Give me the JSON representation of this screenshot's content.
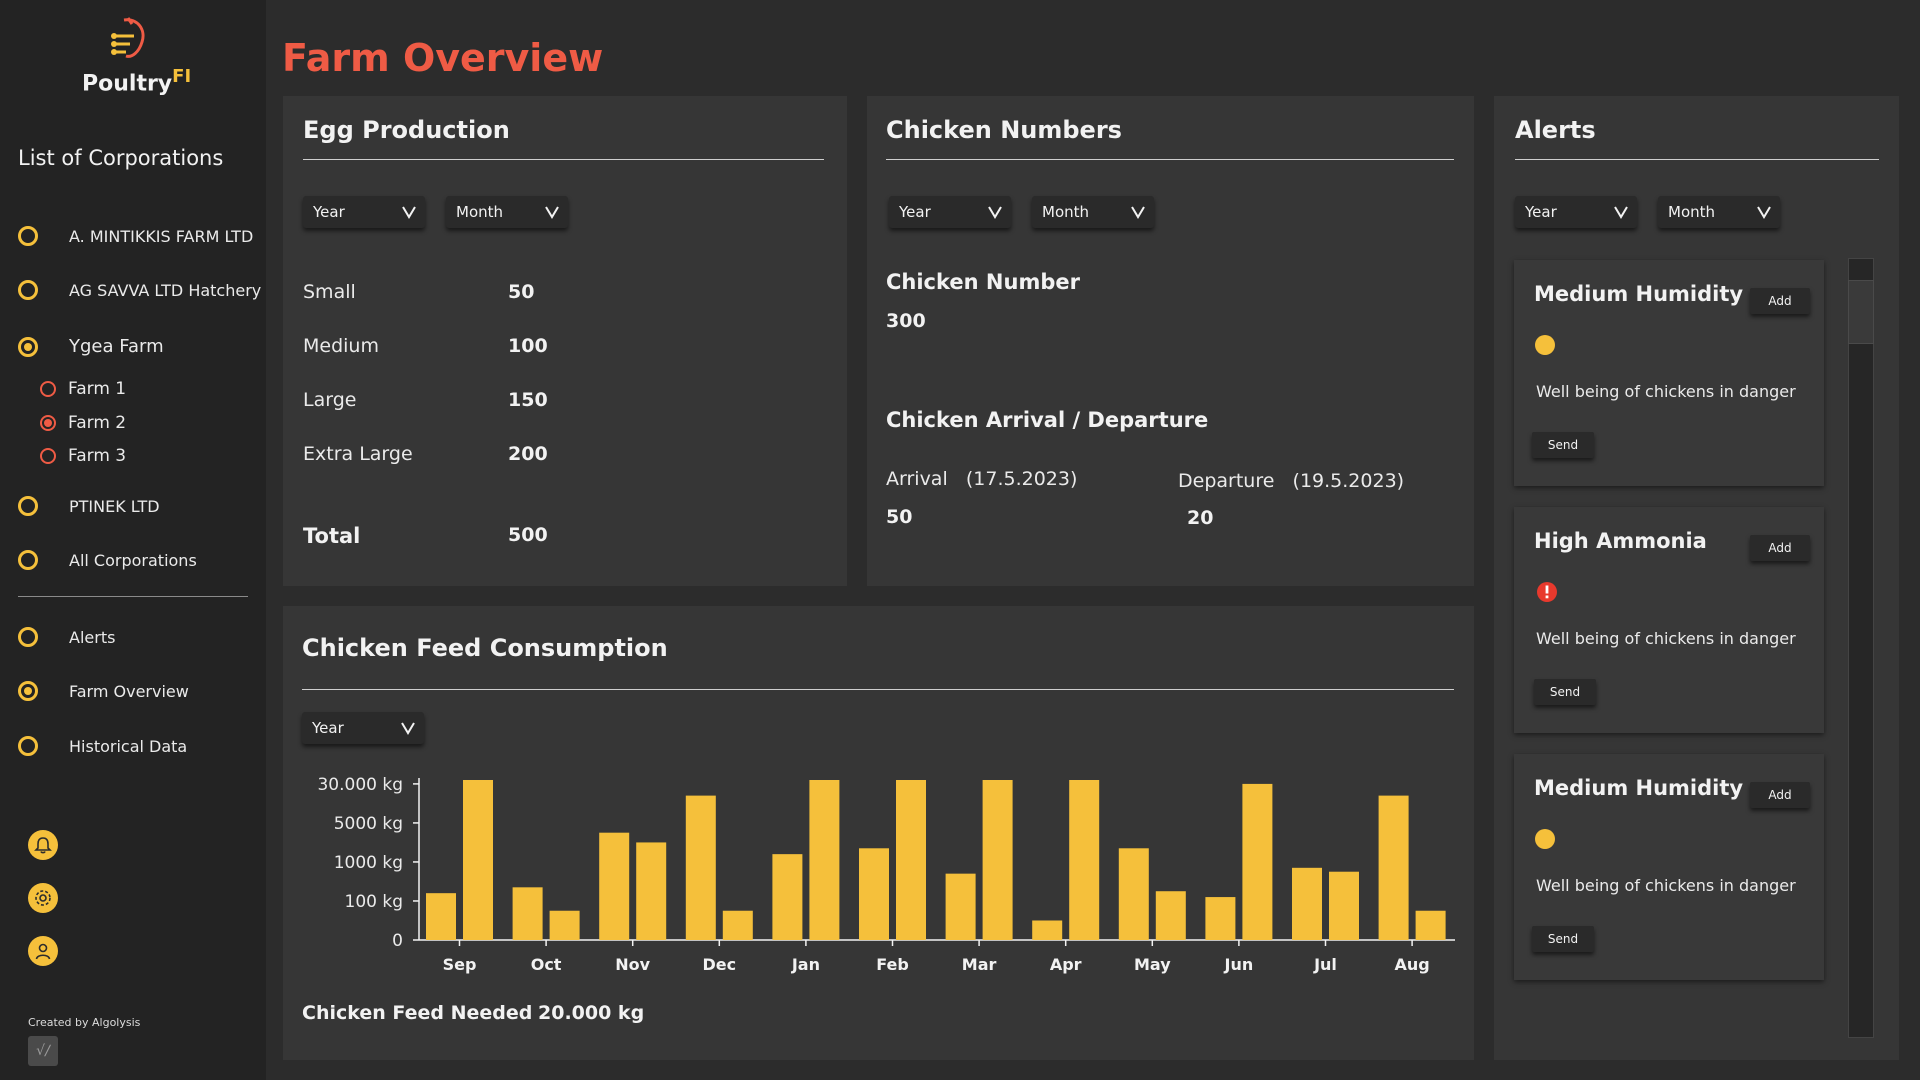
{
  "app": {
    "logo_text": "Poultry",
    "logo_suffix": "FI",
    "page_title": "Farm Overview"
  },
  "sidebar": {
    "title_prefix": "List of",
    "title_rest": " Corporations",
    "corporations": [
      {
        "label": "A. MINTIKKIS FARM LTD",
        "selected": false
      },
      {
        "label": "AG SAVVA LTD Hatchery",
        "selected": false
      },
      {
        "label": "Ygea Farm",
        "selected": true
      },
      {
        "label": "PTINEK LTD",
        "selected": false
      },
      {
        "label": "All Corporations",
        "selected": false
      }
    ],
    "farms": [
      {
        "label": "Farm 1",
        "selected": false
      },
      {
        "label": "Farm 2",
        "selected": true
      },
      {
        "label": "Farm 3",
        "selected": false
      }
    ],
    "nav": [
      {
        "label": "Alerts",
        "selected": false
      },
      {
        "label": "Farm Overview",
        "selected": true
      },
      {
        "label": "Historical Data",
        "selected": false
      }
    ],
    "icons": [
      "bell-icon",
      "gear-icon",
      "user-icon"
    ],
    "credit": "Created by Algolysis"
  },
  "egg_production": {
    "title": "Egg Production",
    "filters": {
      "year": "Year",
      "month": "Month"
    },
    "rows": [
      {
        "label": "Small",
        "value": "50"
      },
      {
        "label": "Medium",
        "value": "100"
      },
      {
        "label": "Large",
        "value": "150"
      },
      {
        "label": "Extra Large",
        "value": "200"
      }
    ],
    "total_label": "Total",
    "total_value": "500"
  },
  "chicken_numbers": {
    "title": "Chicken Numbers",
    "filters": {
      "year": "Year",
      "month": "Month"
    },
    "count_label": "Chicken Number",
    "count_value": "300",
    "movement_title": "Chicken Arrival / Departure",
    "arrival_label": "Arrival",
    "arrival_date": "(17.5.2023)",
    "arrival_value": "50",
    "departure_label": "Departure",
    "departure_date": "(19.5.2023)",
    "departure_value": "20"
  },
  "alerts": {
    "title": "Alerts",
    "filters": {
      "year": "Year",
      "month": "Month"
    },
    "items": [
      {
        "title": "Medium Humidity",
        "severity": "medium",
        "message": "Well being of chickens in danger",
        "add_label": "Add",
        "send_label": "Send"
      },
      {
        "title": "High Ammonia",
        "severity": "high",
        "message": "Well being of chickens in danger",
        "add_label": "Add",
        "send_label": "Send"
      },
      {
        "title": "Medium Humidity",
        "severity": "medium",
        "message": "Well being of chickens in danger",
        "add_label": "Add",
        "send_label": "Send"
      }
    ],
    "colors": {
      "medium": "#f5c03b",
      "high": "#e8392d"
    }
  },
  "feed": {
    "title": "Chicken Feed Consumption",
    "filter_year": "Year",
    "needed_label": "Chicken Feed Needed",
    "needed_value": "20.000 kg"
  },
  "chart_data": {
    "type": "bar",
    "categories": [
      "Sep",
      "Oct",
      "Nov",
      "Dec",
      "Jan",
      "Feb",
      "Mar",
      "Apr",
      "May",
      "Jun",
      "Jul",
      "Aug"
    ],
    "y_ticks": [
      "0",
      "100  kg",
      "1000  kg",
      "5000  kg",
      "30.000  kg"
    ],
    "y_tick_positions": [
      0,
      1,
      2,
      3,
      4
    ],
    "series": [
      {
        "values": [
          1.2,
          1.35,
          2.75,
          3.7,
          2.2,
          2.35,
          1.7,
          0.5,
          2.35,
          1.1,
          1.85,
          3.7
        ]
      },
      {
        "values": [
          4.1,
          0.75,
          2.5,
          0.75,
          4.1,
          4.1,
          4.1,
          4.1,
          1.25,
          4.0,
          1.75,
          0.75
        ]
      }
    ],
    "bar_color": "#f5c03b",
    "grid": false
  }
}
